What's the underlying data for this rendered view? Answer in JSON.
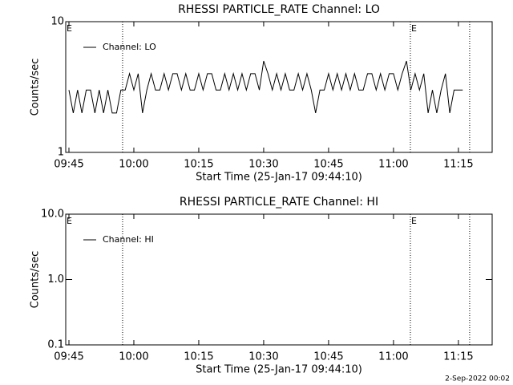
{
  "chart_data": [
    {
      "type": "line",
      "title": "RHESSI PARTICLE_RATE Channel: LO",
      "xlabel": "Start Time (25-Jan-17 09:44:10)",
      "ylabel": "Counts/sec",
      "x": [
        0,
        1,
        2,
        3,
        4,
        5,
        6,
        7,
        8,
        9,
        10,
        11,
        12,
        13,
        14,
        15,
        16,
        17,
        18,
        19,
        20,
        21,
        22,
        23,
        24,
        25,
        26,
        27,
        28,
        29,
        30,
        31,
        32,
        33,
        34,
        35,
        36,
        37,
        38,
        39,
        40,
        41,
        42,
        43,
        44,
        45,
        46,
        47,
        48,
        49,
        50,
        51,
        52,
        53,
        54,
        55,
        56,
        57,
        58,
        59,
        60,
        61,
        62,
        63,
        64,
        65,
        66,
        67,
        68,
        69,
        70,
        71,
        72,
        73,
        74,
        75,
        76,
        77,
        78,
        79,
        80,
        81,
        82,
        83,
        84,
        85,
        86,
        87,
        88,
        89,
        90,
        91
      ],
      "series": [
        {
          "name": "Channel: LO",
          "color": "#000000",
          "values": [
            3,
            2,
            3,
            2,
            3,
            3,
            2,
            3,
            2,
            3,
            2,
            2,
            3,
            3,
            4,
            3,
            4,
            2,
            3,
            4,
            3,
            3,
            4,
            3,
            4,
            4,
            3,
            4,
            3,
            3,
            4,
            3,
            4,
            4,
            3,
            3,
            4,
            3,
            4,
            3,
            4,
            3,
            4,
            4,
            3,
            5,
            4,
            3,
            4,
            3,
            4,
            3,
            3,
            4,
            3,
            4,
            3,
            2,
            3,
            3,
            4,
            3,
            4,
            3,
            4,
            3,
            4,
            3,
            3,
            4,
            4,
            3,
            4,
            3,
            4,
            4,
            3,
            4,
            5,
            3,
            4,
            3,
            4,
            2,
            3,
            2,
            3,
            4,
            2,
            3,
            3,
            3
          ]
        }
      ],
      "xlim": [
        -0.74,
        97.8
      ],
      "xticks": [
        {
          "value": 0,
          "label": "09:45"
        },
        {
          "value": 15,
          "label": "10:00"
        },
        {
          "value": 30,
          "label": "10:15"
        },
        {
          "value": 45,
          "label": "10:30"
        },
        {
          "value": 60,
          "label": "10:45"
        },
        {
          "value": 75,
          "label": "11:00"
        },
        {
          "value": 90,
          "label": "11:15"
        }
      ],
      "ylim": [
        1,
        10
      ],
      "yticks": [
        1,
        10
      ],
      "log_y": true,
      "vlines": [
        12.4,
        78.9,
        92.6
      ],
      "markers": [
        {
          "x": -0.74,
          "text": "E"
        },
        {
          "x": 78.9,
          "text": "E"
        }
      ]
    },
    {
      "type": "line",
      "title": "RHESSI PARTICLE_RATE Channel: HI",
      "xlabel": "Start Time (25-Jan-17 09:44:10)",
      "ylabel": "Counts/sec",
      "x": [],
      "series": [
        {
          "name": "Channel: HI",
          "color": "#000000",
          "values": []
        }
      ],
      "xlim": [
        -0.74,
        97.8
      ],
      "xticks": [
        {
          "value": 0,
          "label": "09:45"
        },
        {
          "value": 15,
          "label": "10:00"
        },
        {
          "value": 30,
          "label": "10:15"
        },
        {
          "value": 45,
          "label": "10:30"
        },
        {
          "value": 60,
          "label": "10:45"
        },
        {
          "value": 75,
          "label": "11:00"
        },
        {
          "value": 90,
          "label": "11:15"
        }
      ],
      "ylim": [
        0.1,
        10
      ],
      "yticks": [
        0.1,
        {
          "value": 1,
          "label": "1.0"
        },
        {
          "value": 10,
          "label": "10.0"
        }
      ],
      "log_y": true,
      "vlines": [
        12.4,
        78.9,
        92.6
      ],
      "markers": [
        {
          "x": -0.74,
          "text": "E"
        },
        {
          "x": 78.9,
          "text": "E"
        }
      ]
    }
  ],
  "footer": "2-Sep-2022 00:02"
}
